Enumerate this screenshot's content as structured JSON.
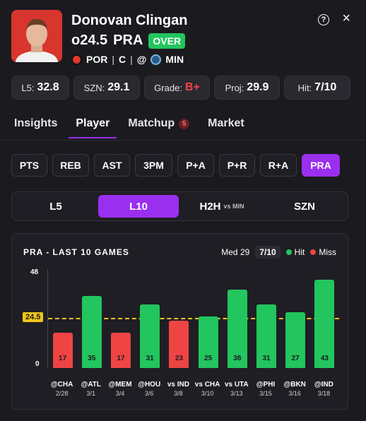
{
  "player": {
    "name": "Donovan Clingan",
    "line": "o24.5",
    "market": "PRA",
    "side": "OVER",
    "team": "POR",
    "position": "C",
    "vs_symbol": "@",
    "opponent": "MIN"
  },
  "stats": [
    {
      "label": "L5:",
      "value": "32.8"
    },
    {
      "label": "SZN:",
      "value": "29.1"
    },
    {
      "label": "Grade:",
      "value": "B+"
    },
    {
      "label": "Proj:",
      "value": "29.9"
    },
    {
      "label": "Hit:",
      "value": "7/10"
    }
  ],
  "tabs": [
    {
      "label": "Insights"
    },
    {
      "label": "Player"
    },
    {
      "label": "Matchup",
      "badge": "5"
    },
    {
      "label": "Market"
    }
  ],
  "stat_chips": [
    "PTS",
    "REB",
    "AST",
    "3PM",
    "P+A",
    "P+R",
    "R+A",
    "PRA"
  ],
  "ranges": {
    "l5": "L5",
    "l10": "L10",
    "h2h": "H2H",
    "h2h_sub": "vs MIN",
    "szn": "SZN"
  },
  "chart": {
    "title": "PRA - LAST 10 GAMES",
    "median": "Med 29",
    "hit_rate": "7/10",
    "legend_hit": "Hit",
    "legend_miss": "Miss",
    "y_max_label": "48",
    "y_min_label": "0",
    "line_label": "24.5",
    "colors": {
      "hit": "#22c55e",
      "miss": "#ef4444",
      "line": "#f0c419"
    }
  },
  "chart_data": {
    "type": "bar",
    "title": "PRA - LAST 10 GAMES",
    "categories": [
      "@CHA",
      "@ATL",
      "@MEM",
      "@HOU",
      "vs IND",
      "vs CHA",
      "vs UTA",
      "@PHI",
      "@BKN",
      "@IND"
    ],
    "dates": [
      "2/28",
      "3/1",
      "3/4",
      "3/6",
      "3/8",
      "3/10",
      "3/13",
      "3/15",
      "3/16",
      "3/18"
    ],
    "values": [
      17,
      35,
      17,
      31,
      23,
      25,
      38,
      31,
      27,
      43
    ],
    "line": 24.5,
    "ylim": [
      0,
      48
    ],
    "legend": [
      "Hit",
      "Miss"
    ]
  }
}
